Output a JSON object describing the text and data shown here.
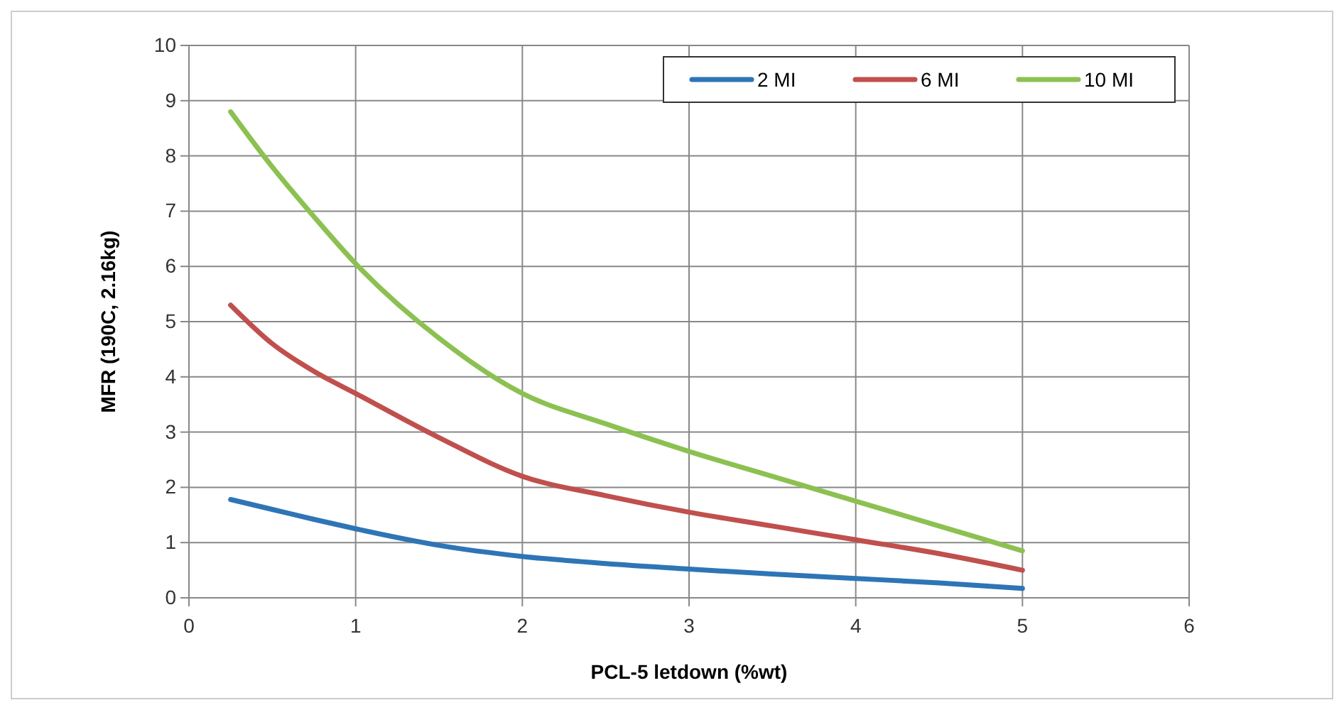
{
  "chart_data": {
    "type": "line",
    "xlabel": "PCL-5 letdown (%wt)",
    "ylabel": "MFR (190C, 2.16kg)",
    "xlim": [
      0,
      6
    ],
    "xticks": [
      0,
      1,
      2,
      3,
      4,
      5,
      6
    ],
    "ylim": [
      0,
      10
    ],
    "yticks": [
      0,
      1,
      2,
      3,
      4,
      5,
      6,
      7,
      8,
      9,
      10
    ],
    "grid": true,
    "legend": "top right",
    "marker": "none",
    "line_style": "solid",
    "x": [
      0.25,
      0.5,
      0.75,
      1,
      1.5,
      2,
      2.5,
      3,
      3.5,
      4,
      4.5,
      5
    ],
    "series": [
      {
        "name": "2 MI",
        "color": "#2e75b6",
        "values": [
          1.78,
          1.6,
          1.42,
          1.25,
          0.95,
          0.75,
          0.62,
          0.52,
          0.43,
          0.35,
          0.27,
          0.17
        ]
      },
      {
        "name": "6 MI",
        "color": "#c0504d",
        "values": [
          5.3,
          4.6,
          4.1,
          3.7,
          2.9,
          2.2,
          1.85,
          1.55,
          1.3,
          1.05,
          0.8,
          0.5
        ]
      },
      {
        "name": "10 MI",
        "color": "#8cc152",
        "values": [
          8.8,
          7.8,
          6.9,
          6.05,
          4.7,
          3.7,
          3.15,
          2.65,
          2.2,
          1.75,
          1.3,
          0.85
        ]
      }
    ]
  }
}
